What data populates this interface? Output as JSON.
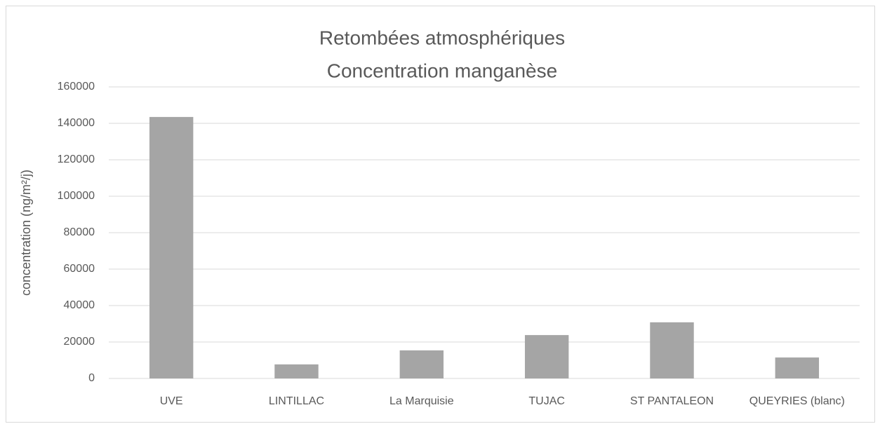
{
  "chart_data": {
    "type": "bar",
    "title": [
      "Retombées atmosphériques",
      "Concentration manganèse"
    ],
    "y_label": "concentration (ng/m²/j)",
    "categories": [
      "UVE",
      "LINTILLAC",
      "La Marquisie",
      "TUJAC",
      "ST PANTALEON",
      "QUEYRIES (blanc)"
    ],
    "values": [
      143500,
      7700,
      15400,
      23800,
      30800,
      11500
    ],
    "color": "#a5a5a5",
    "ylim": [
      0,
      160000
    ],
    "yticks": [
      0,
      20000,
      40000,
      60000,
      80000,
      100000,
      120000,
      140000,
      160000
    ],
    "grid": true
  }
}
